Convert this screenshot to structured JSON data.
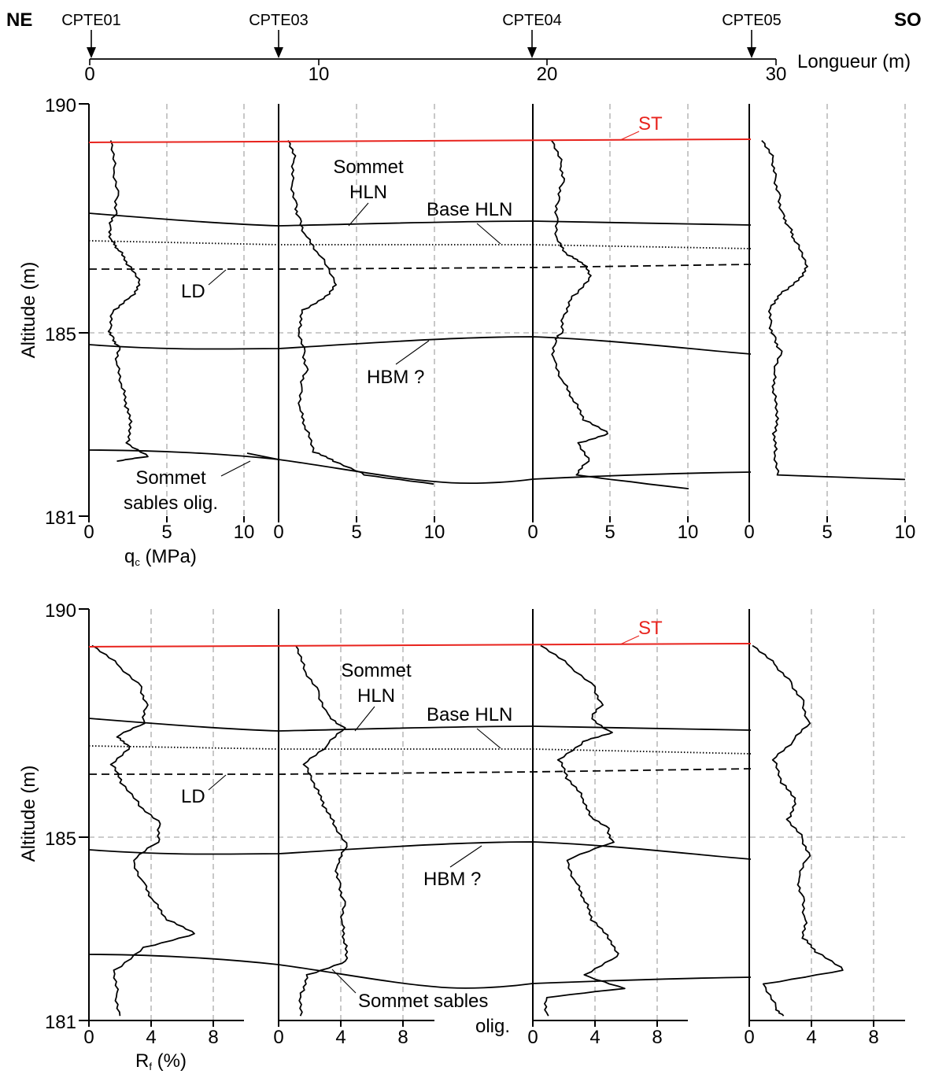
{
  "header": {
    "left_dir": "NE",
    "right_dir": "SO",
    "length_label": "Longueur (m)",
    "length_ticks": [
      "0",
      "10",
      "20",
      "30"
    ],
    "boreholes": [
      {
        "name": "CPTE01",
        "pos_m": 0
      },
      {
        "name": "CPTE03",
        "pos_m": 8.3
      },
      {
        "name": "CPTE04",
        "pos_m": 19.3
      },
      {
        "name": "CPTE05",
        "pos_m": 28.9
      }
    ]
  },
  "panels": [
    {
      "id": "qc",
      "ylabel": "Altitude (m)",
      "ytick_top": "190",
      "ytick_mid": "185",
      "ytick_bot": "181",
      "x_ticks": [
        "0",
        "5",
        "10"
      ],
      "x_label_main": "q",
      "x_label_sub": "c",
      "x_label_unit": " (MPa)",
      "labels": {
        "st": "ST",
        "sommet_hln_1": "Sommet",
        "sommet_hln_2": "HLN",
        "base_hln": "Base HLN",
        "ld": "LD",
        "hbm": "HBM ?",
        "sommet_sables_1": "Sommet",
        "sommet_sables_2": "sables olig."
      }
    },
    {
      "id": "rf",
      "ylabel": "Altitude (m)",
      "ytick_top": "190",
      "ytick_mid": "185",
      "ytick_bot": "181",
      "x_ticks": [
        "0",
        "4",
        "8"
      ],
      "x_label_main": "R",
      "x_label_sub": "f",
      "x_label_unit": " (%)",
      "labels": {
        "st": "ST",
        "sommet_hln_1": "Sommet",
        "sommet_hln_2": "HLN",
        "base_hln": "Base HLN",
        "ld": "LD",
        "hbm": "HBM ?",
        "sommet_sables_1": "Sommet sables",
        "sommet_sables_2": "olig."
      }
    }
  ],
  "chart_data": [
    {
      "type": "line",
      "title": "",
      "xlabel": "qc (MPa)",
      "ylabel": "Altitude (m)",
      "ylim": [
        181,
        190
      ],
      "xlim": [
        0,
        10
      ],
      "series": [
        {
          "name": "CPTE01",
          "points": [
            [
              1.4,
              189.2
            ],
            [
              1.6,
              188.6
            ],
            [
              1.9,
              188.0
            ],
            [
              1.8,
              187.6
            ],
            [
              1.4,
              187.3
            ],
            [
              1.5,
              187.0
            ],
            [
              1.9,
              186.8
            ],
            [
              2.4,
              186.5
            ],
            [
              3.2,
              186.1
            ],
            [
              2.7,
              185.8
            ],
            [
              1.6,
              185.5
            ],
            [
              1.4,
              185.1
            ],
            [
              1.6,
              184.9
            ],
            [
              2.0,
              184.7
            ],
            [
              1.8,
              184.3
            ],
            [
              2.1,
              183.8
            ],
            [
              2.3,
              183.4
            ],
            [
              2.6,
              183.0
            ],
            [
              2.4,
              182.6
            ],
            [
              3.8,
              182.3
            ],
            [
              1.8,
              182.2
            ]
          ]
        },
        {
          "name": "CPTE03",
          "points": [
            [
              0.6,
              189.2
            ],
            [
              1.0,
              188.8
            ],
            [
              0.9,
              188.3
            ],
            [
              1.2,
              187.8
            ],
            [
              1.4,
              187.5
            ],
            [
              1.8,
              187.1
            ],
            [
              2.6,
              186.7
            ],
            [
              3.6,
              186.1
            ],
            [
              3.0,
              185.8
            ],
            [
              1.5,
              185.5
            ],
            [
              1.3,
              185.1
            ],
            [
              1.7,
              184.6
            ],
            [
              1.9,
              184.2
            ],
            [
              1.5,
              183.8
            ],
            [
              1.4,
              183.3
            ],
            [
              1.7,
              182.9
            ],
            [
              2.2,
              182.4
            ],
            [
              3.5,
              182.2
            ],
            [
              5.5,
              181.9
            ],
            [
              10.0,
              181.7
            ]
          ]
        },
        {
          "name": "CPTE04",
          "points": [
            [
              1.2,
              189.2
            ],
            [
              1.8,
              188.7
            ],
            [
              2.0,
              188.3
            ],
            [
              1.7,
              187.9
            ],
            [
              1.6,
              187.5
            ],
            [
              1.6,
              187.0
            ],
            [
              2.2,
              186.7
            ],
            [
              3.2,
              186.5
            ],
            [
              3.6,
              186.2
            ],
            [
              2.5,
              185.8
            ],
            [
              2.0,
              185.4
            ],
            [
              1.9,
              185.0
            ],
            [
              1.5,
              184.8
            ],
            [
              1.4,
              184.4
            ],
            [
              2.0,
              183.9
            ],
            [
              2.6,
              183.5
            ],
            [
              3.2,
              183.1
            ],
            [
              4.8,
              182.8
            ],
            [
              2.9,
              182.6
            ],
            [
              3.6,
              182.2
            ],
            [
              2.8,
              181.9
            ],
            [
              10.0,
              181.6
            ]
          ]
        },
        {
          "name": "CPTE05",
          "points": [
            [
              0.8,
              189.2
            ],
            [
              1.5,
              188.8
            ],
            [
              1.7,
              188.4
            ],
            [
              2.0,
              188.0
            ],
            [
              2.2,
              187.6
            ],
            [
              2.6,
              187.3
            ],
            [
              2.9,
              187.0
            ],
            [
              3.6,
              186.5
            ],
            [
              3.2,
              186.2
            ],
            [
              2.1,
              185.9
            ],
            [
              1.4,
              185.6
            ],
            [
              1.4,
              185.2
            ],
            [
              1.7,
              184.9
            ],
            [
              2.1,
              184.6
            ],
            [
              1.6,
              184.1
            ],
            [
              1.5,
              183.7
            ],
            [
              1.7,
              183.2
            ],
            [
              1.5,
              182.8
            ],
            [
              1.6,
              182.4
            ],
            [
              1.8,
              181.9
            ],
            [
              10.0,
              181.8
            ]
          ]
        }
      ]
    },
    {
      "type": "line",
      "title": "",
      "xlabel": "Rf (%)",
      "ylabel": "Altitude (m)",
      "ylim": [
        181,
        190
      ],
      "xlim": [
        0,
        10
      ],
      "series": [
        {
          "name": "CPTE01",
          "points": [
            [
              0.2,
              189.2
            ],
            [
              1.8,
              188.8
            ],
            [
              3.4,
              188.3
            ],
            [
              3.8,
              187.9
            ],
            [
              3.6,
              187.5
            ],
            [
              1.8,
              187.2
            ],
            [
              2.6,
              187.0
            ],
            [
              1.4,
              186.6
            ],
            [
              2.0,
              186.2
            ],
            [
              3.2,
              185.7
            ],
            [
              4.6,
              185.3
            ],
            [
              4.5,
              184.9
            ],
            [
              2.9,
              184.5
            ],
            [
              3.6,
              184.0
            ],
            [
              4.2,
              183.6
            ],
            [
              5.0,
              183.2
            ],
            [
              6.8,
              182.9
            ],
            [
              3.5,
              182.6
            ],
            [
              1.6,
              182.1
            ],
            [
              1.8,
              181.6
            ],
            [
              2.0,
              181.1
            ]
          ]
        },
        {
          "name": "CPTE03",
          "points": [
            [
              1.1,
              189.2
            ],
            [
              1.6,
              188.7
            ],
            [
              2.6,
              188.2
            ],
            [
              3.2,
              187.7
            ],
            [
              4.3,
              187.4
            ],
            [
              3.1,
              187.0
            ],
            [
              1.6,
              186.6
            ],
            [
              2.3,
              186.1
            ],
            [
              2.8,
              185.7
            ],
            [
              3.5,
              185.3
            ],
            [
              4.4,
              184.8
            ],
            [
              3.8,
              184.4
            ],
            [
              4.0,
              184.0
            ],
            [
              4.3,
              183.6
            ],
            [
              4.1,
              183.1
            ],
            [
              4.2,
              182.7
            ],
            [
              4.3,
              182.3
            ],
            [
              1.8,
              182.0
            ],
            [
              1.4,
              181.6
            ],
            [
              1.4,
              181.1
            ]
          ]
        },
        {
          "name": "CPTE04",
          "points": [
            [
              0.5,
              189.2
            ],
            [
              2.2,
              188.8
            ],
            [
              4.0,
              188.3
            ],
            [
              4.5,
              187.9
            ],
            [
              3.8,
              187.6
            ],
            [
              5.1,
              187.3
            ],
            [
              3.2,
              187.1
            ],
            [
              1.6,
              186.7
            ],
            [
              2.1,
              186.3
            ],
            [
              3.1,
              185.9
            ],
            [
              3.6,
              185.5
            ],
            [
              4.9,
              185.2
            ],
            [
              5.2,
              184.9
            ],
            [
              2.2,
              184.5
            ],
            [
              2.8,
              184.0
            ],
            [
              3.3,
              183.6
            ],
            [
              3.7,
              183.2
            ],
            [
              4.8,
              182.8
            ],
            [
              5.4,
              182.4
            ],
            [
              3.3,
              182.0
            ],
            [
              5.9,
              181.7
            ],
            [
              0.9,
              181.5
            ],
            [
              1.0,
              181.1
            ]
          ]
        },
        {
          "name": "CPTE05",
          "points": [
            [
              0.2,
              189.2
            ],
            [
              1.6,
              188.8
            ],
            [
              2.7,
              188.4
            ],
            [
              3.5,
              188.0
            ],
            [
              3.9,
              187.5
            ],
            [
              2.8,
              187.1
            ],
            [
              1.5,
              186.7
            ],
            [
              2.0,
              186.2
            ],
            [
              2.9,
              185.8
            ],
            [
              2.4,
              185.4
            ],
            [
              3.4,
              185.0
            ],
            [
              3.9,
              184.6
            ],
            [
              3.2,
              184.1
            ],
            [
              3.5,
              183.7
            ],
            [
              3.6,
              183.2
            ],
            [
              3.4,
              182.8
            ],
            [
              4.2,
              182.5
            ],
            [
              6.0,
              182.1
            ],
            [
              0.9,
              181.8
            ],
            [
              1.7,
              181.3
            ],
            [
              2.2,
              181.1
            ]
          ]
        }
      ]
    }
  ]
}
